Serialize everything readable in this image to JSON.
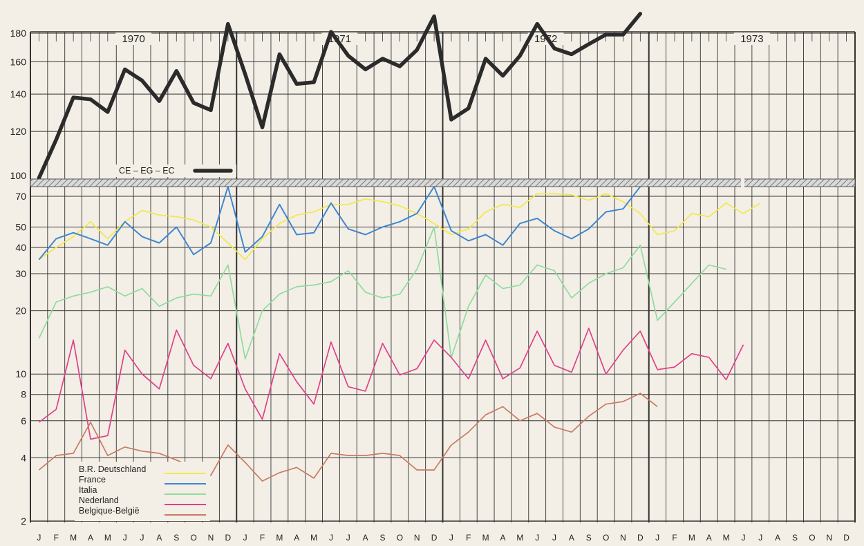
{
  "chart_data": {
    "type": "line",
    "months": [
      "J",
      "F",
      "M",
      "A",
      "M",
      "J",
      "J",
      "A",
      "S",
      "O",
      "N",
      "D",
      "J",
      "F",
      "M",
      "A",
      "M",
      "J",
      "J",
      "A",
      "S",
      "O",
      "N",
      "D",
      "J",
      "F",
      "M",
      "A",
      "M",
      "J",
      "J",
      "A",
      "S",
      "O",
      "N",
      "D",
      "J",
      "F",
      "M",
      "A",
      "M",
      "J",
      "J",
      "A",
      "S",
      "O",
      "N",
      "D"
    ],
    "years": [
      "1970",
      "1971",
      "1972",
      "1973"
    ],
    "upper_panel": {
      "scale": "log",
      "ylim": [
        100,
        190
      ],
      "ticks": [
        "180",
        "160",
        "140",
        "120",
        "100"
      ],
      "tick_values": [
        180,
        160,
        140,
        120,
        100
      ],
      "series": [
        {
          "name": "CE – EG – EC",
          "color": "#2b2b2b",
          "values": [
            99,
            116,
            138,
            137,
            130,
            155,
            148,
            136,
            154,
            135,
            131,
            187,
            152,
            122,
            165,
            146,
            147,
            181,
            164,
            155,
            162,
            157,
            168,
            193,
            126,
            132,
            162,
            151,
            164,
            187,
            169,
            165,
            172,
            179,
            179,
            195
          ]
        }
      ]
    },
    "lower_panel": {
      "scale": "log",
      "ylim": [
        2,
        75
      ],
      "ticks": [
        "70",
        "50",
        "40",
        "30",
        "20",
        "10",
        "8",
        "6",
        "4",
        "2"
      ],
      "tick_values": [
        70,
        50,
        40,
        30,
        20,
        10,
        8,
        6,
        4,
        2
      ],
      "series": [
        {
          "name": "B.R. Deutschland",
          "color": "#f2e84a",
          "values": [
            35,
            40,
            45,
            53,
            44,
            53,
            60,
            57,
            56,
            54,
            50,
            42,
            35,
            44,
            52,
            57,
            59,
            64,
            64,
            68,
            66,
            63,
            58,
            52,
            46,
            49,
            59,
            64,
            62,
            72,
            72,
            71,
            67,
            72,
            66,
            58,
            46,
            48,
            58,
            56,
            65,
            58,
            65,
            null,
            null,
            null,
            null,
            null
          ]
        },
        {
          "name": "France",
          "color": "#3f86cf",
          "values": [
            35,
            44,
            47,
            44,
            41,
            53,
            45,
            42,
            50,
            37,
            42,
            90,
            38,
            45,
            64,
            46,
            47,
            65,
            49,
            46,
            50,
            53,
            58,
            95,
            48,
            43,
            46,
            41,
            52,
            55,
            48,
            44,
            49,
            59,
            61,
            92,
            null,
            null,
            null,
            null,
            null,
            null,
            null,
            null,
            null,
            null,
            null,
            null
          ]
        },
        {
          "name": "Italia",
          "color": "#8fdc9e",
          "values": [
            14.8,
            22,
            23.5,
            24.5,
            26,
            23.5,
            25.5,
            21,
            23,
            24,
            23.5,
            33,
            11.8,
            20,
            24,
            26,
            26.5,
            27.5,
            31,
            24.5,
            23,
            24,
            31.5,
            50,
            12,
            21,
            29.5,
            25.5,
            26.5,
            33,
            31,
            23,
            27,
            30,
            32,
            41,
            18,
            22,
            27,
            33,
            31.5,
            null,
            null,
            null,
            null,
            null,
            null,
            null
          ]
        },
        {
          "name": "Nederland",
          "color": "#e0408a",
          "values": [
            5.9,
            6.8,
            14.5,
            4.9,
            5.1,
            13,
            10,
            8.5,
            16.2,
            11,
            9.5,
            14,
            8.5,
            6.1,
            12.5,
            9.2,
            7.2,
            14.2,
            8.7,
            8.3,
            14,
            9.9,
            10.6,
            14.5,
            12,
            9.5,
            14.5,
            9.5,
            10.7,
            16,
            11,
            10.2,
            16.5,
            10,
            13,
            16,
            10.5,
            10.8,
            12.5,
            12,
            9.4,
            13.8,
            null,
            null,
            null,
            null,
            null,
            null
          ]
        },
        {
          "name": "Belgique-België",
          "color": "#c97a63",
          "values": [
            3.5,
            4.1,
            4.2,
            5.9,
            4.1,
            4.5,
            4.3,
            4.2,
            3.9,
            3.6,
            3.3,
            4.6,
            3.8,
            3.1,
            3.4,
            3.6,
            3.2,
            4.2,
            4.1,
            4.1,
            4.2,
            4.1,
            3.5,
            3.5,
            4.6,
            5.3,
            6.4,
            7,
            6,
            6.5,
            5.6,
            5.3,
            6.3,
            7.2,
            7.4,
            8.1,
            7,
            null,
            null,
            null,
            null,
            null,
            null,
            null,
            null,
            null,
            null,
            null
          ]
        }
      ]
    },
    "legend": "bottom-left",
    "grid": true
  }
}
